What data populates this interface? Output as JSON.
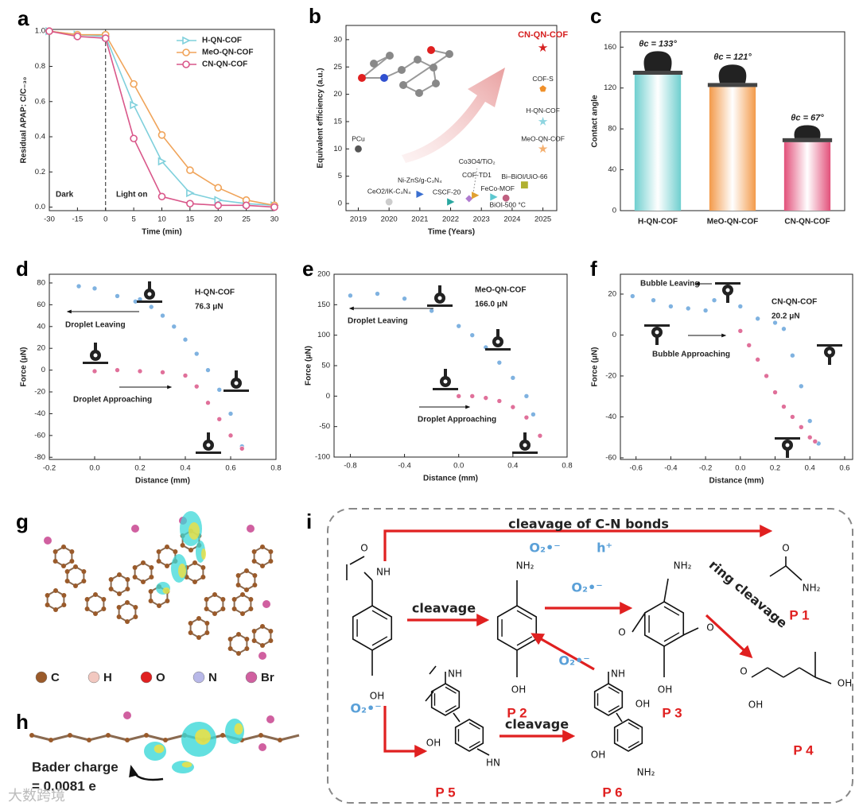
{
  "chart_data": [
    {
      "type": "line",
      "panel_label": "a",
      "categories": [
        "-30",
        "-15",
        "0",
        "5",
        "10",
        "15",
        "20",
        "25",
        "30"
      ],
      "series": [
        {
          "name": "H-QN-COF",
          "color": "#7fd0dc",
          "marker": "triangle",
          "values": [
            1.0,
            0.98,
            0.97,
            0.58,
            0.26,
            0.08,
            0.04,
            0.02,
            0.01
          ]
        },
        {
          "name": "MeO-QN-COF",
          "color": "#f0a45a",
          "marker": "circle",
          "values": [
            1.0,
            0.98,
            0.98,
            0.7,
            0.41,
            0.21,
            0.11,
            0.04,
            0.01
          ]
        },
        {
          "name": "CN-QN-COF",
          "color": "#d9578a",
          "marker": "circle",
          "values": [
            1.0,
            0.97,
            0.96,
            0.39,
            0.06,
            0.02,
            0.01,
            0.01,
            0.0
          ]
        }
      ],
      "ylim": [
        -0.02,
        1.01
      ],
      "yticks": [
        {
          "value": 0,
          "label": "0.0"
        },
        0.2,
        0.4,
        0.6,
        0.8,
        {
          "value": 1,
          "label": "1.0"
        }
      ],
      "xlabel": "Time (min)",
      "ylabel": "Residual APAP: C/C₋₃₀",
      "annotations": [
        "Dark",
        "Light on"
      ],
      "legend": "upper right"
    },
    {
      "type": "scatter",
      "panel_label": "b",
      "x": [
        2019,
        2020,
        2021,
        2022,
        2022.6,
        2022.8,
        2023.4,
        2023.8,
        2024.4,
        2025,
        2025,
        2025,
        2025
      ],
      "values": [
        10,
        0.3,
        1.7,
        0.3,
        0.9,
        1.5,
        1.2,
        1.0,
        3.4,
        28.5,
        21,
        15,
        10
      ],
      "labels": [
        "PCu",
        "CeO2/IK-C₃N₄",
        "Ni-ZnS/g-C₃N₄",
        "CSCF-20",
        "Co3O4/TiO₂",
        "COF-TD1",
        "FeCo-MOF",
        "BiOI-500 °C",
        "Bi–BiOI/UiO-66",
        "CN-QN-COF",
        "COF-S",
        "H-QN-COF",
        "MeO-QN-COF"
      ],
      "colors": [
        "#555555",
        "#cccccc",
        "#3a6fd0",
        "#2aa7a0",
        "#b07cd0",
        "#e0a030",
        "#5cc8d0",
        "#c06080",
        "#b0b030",
        "#d62020",
        "#f0902a",
        "#8fd5e0",
        "#f4b070"
      ],
      "markers": [
        "circle",
        "circle",
        "triangle",
        "triangle",
        "diamond",
        "triangle",
        "triangle",
        "circle",
        "square",
        "star",
        "pentagon",
        "star",
        "star"
      ],
      "xlim": [
        2018.6,
        2025.45
      ],
      "xticks": [
        2019,
        2020,
        2021,
        2022,
        2023,
        2024,
        2025
      ],
      "ylim": [
        -1.3,
        32.6
      ],
      "yticks": [
        0,
        5,
        10,
        15,
        20,
        25,
        30
      ],
      "xlabel": "Time (Years)",
      "ylabel": "Equivalent efficiency (a.u.)"
    },
    {
      "type": "bar",
      "panel_label": "c",
      "categories": [
        "H-QN-COF",
        "MeO-QN-COF",
        "CN-QN-COF"
      ],
      "values": [
        133,
        121,
        67
      ],
      "value_labels": [
        "θc = 133°",
        "θc = 121°",
        "θc = 67°"
      ],
      "colors": [
        "#6fcfcf",
        "#f39a4a",
        "#e2507a"
      ],
      "ylim": [
        0,
        175
      ],
      "yticks": [
        0,
        40,
        80,
        120,
        160
      ],
      "ylabel": "Contact angle"
    },
    {
      "type": "scatter",
      "panel_label": "d",
      "series": [
        {
          "color": "#7fb2e0",
          "x": [
            -0.07,
            0,
            0.1,
            0.18,
            0.2,
            0.25,
            0.3,
            0.35,
            0.4,
            0.45,
            0.5,
            0.55,
            0.6,
            0.65
          ],
          "values": [
            77,
            75,
            68,
            63,
            65,
            58,
            50,
            40,
            28,
            15,
            0,
            -18,
            -40,
            -70
          ]
        },
        {
          "color": "#e0709a",
          "x": [
            0,
            0.1,
            0.2,
            0.3,
            0.4,
            0.45,
            0.5,
            0.55,
            0.6,
            0.65
          ],
          "values": [
            -1,
            0,
            -1,
            -2,
            -5,
            -15,
            -30,
            -45,
            -60,
            -72
          ]
        }
      ],
      "xlim": [
        -0.2,
        0.8
      ],
      "xticks": [
        -0.2,
        {
          "value": 0,
          "label": "0.0"
        },
        0.2,
        0.4,
        0.6,
        0.8
      ],
      "ylim": [
        -82,
        88
      ],
      "yticks": [
        -80,
        -60,
        -40,
        -20,
        0,
        20,
        40,
        60,
        80
      ],
      "xlabel": "Distance (mm)",
      "ylabel": "Force (μN)",
      "annotations": [
        "H-QN-COF",
        "76.3 μN",
        "Droplet Leaving",
        "Droplet Approaching"
      ]
    },
    {
      "type": "scatter",
      "panel_label": "e",
      "series": [
        {
          "color": "#7fb2e0",
          "x": [
            -0.8,
            -0.6,
            -0.4,
            -0.2,
            0,
            0.1,
            0.2,
            0.3,
            0.4,
            0.5,
            0.55,
            0.6
          ],
          "values": [
            165,
            168,
            160,
            140,
            115,
            100,
            80,
            55,
            30,
            0,
            -30,
            -65
          ]
        },
        {
          "color": "#e0709a",
          "x": [
            0,
            0.1,
            0.2,
            0.3,
            0.4,
            0.5,
            0.6
          ],
          "values": [
            0,
            0,
            -3,
            -8,
            -18,
            -35,
            -65
          ]
        }
      ],
      "xlim": [
        -0.92,
        0.8
      ],
      "xticks": [
        -0.8,
        -0.4,
        {
          "value": 0,
          "label": "0.0"
        },
        0.4,
        0.8
      ],
      "ylim": [
        -100,
        200
      ],
      "yticks": [
        -100,
        -50,
        0,
        50,
        100,
        150,
        200
      ],
      "xlabel": "Distance (mm)",
      "ylabel": "Force (μN)",
      "annotations": [
        "MeO-QN-COF",
        "166.0 μN",
        "Droplet Leaving",
        "Droplet Approaching"
      ]
    },
    {
      "type": "scatter",
      "panel_label": "f",
      "series": [
        {
          "color": "#7fb2e0",
          "x": [
            -0.62,
            -0.5,
            -0.4,
            -0.3,
            -0.2,
            -0.15,
            0,
            0.1,
            0.2,
            0.25,
            0.3,
            0.35,
            0.4,
            0.45
          ],
          "values": [
            19,
            17,
            14,
            13,
            12,
            17,
            14,
            8,
            6,
            3,
            -10,
            -25,
            -42,
            -53
          ]
        },
        {
          "color": "#e0709a",
          "x": [
            0,
            0.05,
            0.1,
            0.15,
            0.2,
            0.25,
            0.3,
            0.35,
            0.4,
            0.43
          ],
          "values": [
            2,
            -5,
            -12,
            -20,
            -28,
            -35,
            -40,
            -45,
            -50,
            -52
          ]
        }
      ],
      "xlim": [
        -0.69,
        0.646
      ],
      "xticks": [
        -0.6,
        -0.4,
        -0.2,
        {
          "value": 0,
          "label": "0.0"
        },
        0.2,
        0.4,
        0.6
      ],
      "ylim": [
        -60.8,
        29.7
      ],
      "yticks": [
        -60,
        -40,
        -20,
        0,
        20
      ],
      "xlabel": "Distance (mm)",
      "ylabel": "Force (μN)",
      "annotations": [
        "CN-QN-COF",
        "20.2 μN",
        "Bubble Leaving",
        "Bubble Approaching"
      ]
    }
  ],
  "panel_g": {
    "label": "g",
    "legend": [
      "C",
      "H",
      "O",
      "N",
      "Br"
    ],
    "colors": [
      "#9a5a2a",
      "#f2c8c0",
      "#e02020",
      "#b8b8e8",
      "#d060a0"
    ]
  },
  "panel_h": {
    "label": "h",
    "annotation": [
      "Bader charge",
      "= 0.0081 e"
    ]
  },
  "panel_i": {
    "label": "i",
    "arrow_labels": [
      "cleavage of C-N bonds",
      "O₂•⁻",
      "h⁺",
      "cleavage",
      "O₂•⁻",
      "ring cleavage",
      "O₂•⁻",
      "O₂•⁻",
      "cleavage"
    ],
    "molecules": [
      {
        "groups": [
          "O",
          "NH",
          "OH"
        ]
      },
      {
        "label": "P 1",
        "groups": [
          "O",
          "NH₂"
        ]
      },
      {
        "label": "P 2",
        "groups": [
          "NH₂",
          "OH"
        ]
      },
      {
        "label": "P 3",
        "groups": [
          "O",
          "NH₂",
          "OH",
          "O"
        ]
      },
      {
        "label": "P 4",
        "groups": [
          "O",
          "OH",
          "OH"
        ]
      },
      {
        "label": "P 5",
        "groups": [
          "NH",
          "OH",
          "HN"
        ]
      },
      {
        "label": "P 6",
        "groups": [
          "NH",
          "OH",
          "OH",
          "NH₂"
        ]
      }
    ]
  },
  "watermark": "大数跨境"
}
